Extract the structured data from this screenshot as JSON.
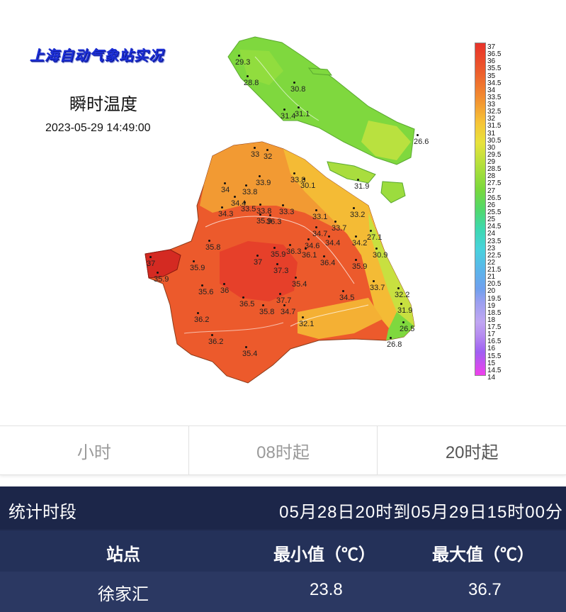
{
  "map": {
    "title": "上海自动气象站实况",
    "subtitle": "瞬时温度",
    "timestamp": "2023-05-29 14:49:00",
    "stations": [
      {
        "label": "29.3"
      },
      {
        "label": "28.8"
      },
      {
        "label": "30.8"
      },
      {
        "label": "31.4"
      },
      {
        "label": "31.1"
      },
      {
        "label": "26.6"
      },
      {
        "label": "33"
      },
      {
        "label": "32"
      },
      {
        "label": "33.8"
      },
      {
        "label": "30.1"
      },
      {
        "label": "31.9"
      },
      {
        "label": "33.9"
      },
      {
        "label": "34"
      },
      {
        "label": "33.8"
      },
      {
        "label": "34.4"
      },
      {
        "label": "33.5"
      },
      {
        "label": "34.3"
      },
      {
        "label": "33.8"
      },
      {
        "label": "33.3"
      },
      {
        "label": "33.1"
      },
      {
        "label": "33.2"
      },
      {
        "label": "35.9"
      },
      {
        "label": "36.3"
      },
      {
        "label": "33.7"
      },
      {
        "label": "34.7"
      },
      {
        "label": "27.1"
      },
      {
        "label": "34.6"
      },
      {
        "label": "34.4"
      },
      {
        "label": "34.2"
      },
      {
        "label": "35.8"
      },
      {
        "label": "36.3"
      },
      {
        "label": "35.9"
      },
      {
        "label": "36.1"
      },
      {
        "label": "30.9"
      },
      {
        "label": "37"
      },
      {
        "label": "37"
      },
      {
        "label": "36.4"
      },
      {
        "label": "35.9"
      },
      {
        "label": "35.9"
      },
      {
        "label": "37.3"
      },
      {
        "label": "35.9"
      },
      {
        "label": "35.4"
      },
      {
        "label": "33.7"
      },
      {
        "label": "35.6"
      },
      {
        "label": "36"
      },
      {
        "label": "34.5"
      },
      {
        "label": "32.2"
      },
      {
        "label": "36.5"
      },
      {
        "label": "37.7"
      },
      {
        "label": "35.8"
      },
      {
        "label": "34.7"
      },
      {
        "label": "31.9"
      },
      {
        "label": "36.2"
      },
      {
        "label": "32.1"
      },
      {
        "label": "26.5"
      },
      {
        "label": "36.2"
      },
      {
        "label": "26.8"
      },
      {
        "label": "35.4"
      }
    ],
    "legend": [
      "37",
      "36.5",
      "36",
      "35.5",
      "35",
      "34.5",
      "34",
      "33.5",
      "33",
      "32.5",
      "32",
      "31.5",
      "31",
      "30.5",
      "30",
      "29.5",
      "29",
      "28.5",
      "28",
      "27.5",
      "27",
      "26.5",
      "26",
      "25.5",
      "25",
      "24.5",
      "24",
      "23.5",
      "23",
      "22.5",
      "22",
      "21.5",
      "21",
      "20.5",
      "20",
      "19.5",
      "19",
      "18.5",
      "18",
      "17.5",
      "17",
      "16.5",
      "16",
      "15.5",
      "15",
      "14.5",
      "14"
    ]
  },
  "tabs": [
    {
      "label": "小时"
    },
    {
      "label": "08时起"
    },
    {
      "label": "20时起"
    }
  ],
  "stats": {
    "period_label": "统计时段",
    "period_value": "05月28日20时到05月29日15时00分",
    "headers": {
      "station": "站点",
      "min": "最小值（℃）",
      "max": "最大值（℃）"
    },
    "rows": [
      {
        "station": "徐家汇",
        "min": "23.8",
        "max": "36.7"
      }
    ]
  },
  "colors": {
    "header_bg": "#1f2a4e",
    "hot": "#e8322a",
    "warm": "#f6c437",
    "mild": "#7ad83c",
    "cool": "#5ab6ea",
    "cold": "#f040ec"
  }
}
